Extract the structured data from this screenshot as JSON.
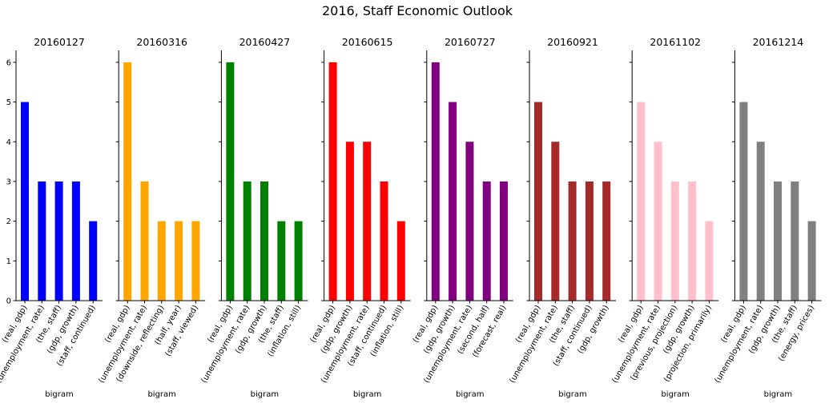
{
  "figure": {
    "suptitle": "2016, Staff Economic Outlook"
  },
  "chart_data": {
    "type": "bar",
    "ylim": [
      0,
      6.3
    ],
    "yticks": [
      0,
      1,
      2,
      3,
      4,
      5,
      6
    ],
    "xlabel": "bigram",
    "grid": false,
    "panels": [
      {
        "title": "20160127",
        "color": "#0000ff",
        "categories": [
          "(real, gdp)",
          "(unemployment, rate)",
          "(the, staff)",
          "(gdp, growth)",
          "(staff, continued)"
        ],
        "values": [
          5,
          3,
          3,
          3,
          2
        ]
      },
      {
        "title": "20160316",
        "color": "#ffa500",
        "categories": [
          "(real, gdp)",
          "(unemployment, rate)",
          "(downside, reflecting)",
          "(half, year)",
          "(staff, viewed)"
        ],
        "values": [
          6,
          3,
          2,
          2,
          2
        ]
      },
      {
        "title": "20160427",
        "color": "#008000",
        "categories": [
          "(real, gdp)",
          "(unemployment, rate)",
          "(gdp, growth)",
          "(the, staff)",
          "(inflation, still)"
        ],
        "values": [
          6,
          3,
          3,
          2,
          2
        ]
      },
      {
        "title": "20160615",
        "color": "#ff0000",
        "categories": [
          "(real, gdp)",
          "(gdp, growth)",
          "(unemployment, rate)",
          "(staff, continued)",
          "(inflation, still)"
        ],
        "values": [
          6,
          4,
          4,
          3,
          2
        ]
      },
      {
        "title": "20160727",
        "color": "#800080",
        "categories": [
          "(real, gdp)",
          "(gdp, growth)",
          "(unemployment, rate)",
          "(second, half)",
          "(forecast, real)"
        ],
        "values": [
          6,
          5,
          4,
          3,
          3
        ]
      },
      {
        "title": "20160921",
        "color": "#a52a2a",
        "categories": [
          "(real, gdp)",
          "(unemployment, rate)",
          "(the, staff)",
          "(staff, continued)",
          "(gdp, growth)"
        ],
        "values": [
          5,
          4,
          3,
          3,
          3
        ]
      },
      {
        "title": "20161102",
        "color": "#ffc0cb",
        "categories": [
          "(real, gdp)",
          "(unemployment, rate)",
          "(previous, projection)",
          "(gdp, growth)",
          "(projection, primarily)"
        ],
        "values": [
          5,
          4,
          3,
          3,
          2
        ]
      },
      {
        "title": "20161214",
        "color": "#808080",
        "categories": [
          "(real, gdp)",
          "(unemployment, rate)",
          "(gdp, growth)",
          "(the, staff)",
          "(energy, prices)"
        ],
        "values": [
          5,
          4,
          3,
          3,
          2
        ]
      }
    ]
  }
}
